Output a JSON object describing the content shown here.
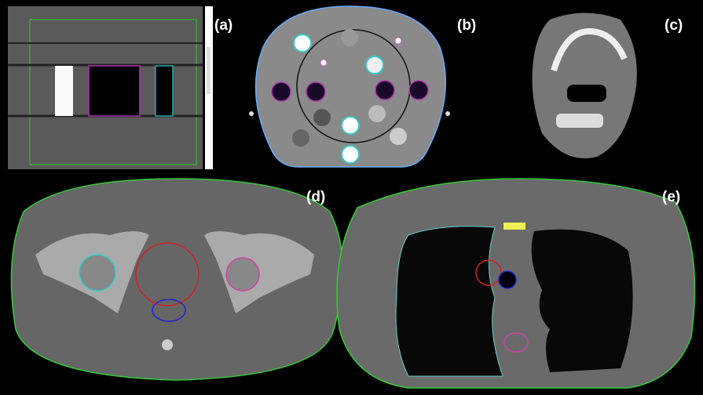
{
  "panels": [
    {
      "label": "(a)"
    },
    {
      "label": "(b)"
    },
    {
      "label": "(c)"
    },
    {
      "label": "(d)"
    },
    {
      "label": "(e)"
    }
  ]
}
